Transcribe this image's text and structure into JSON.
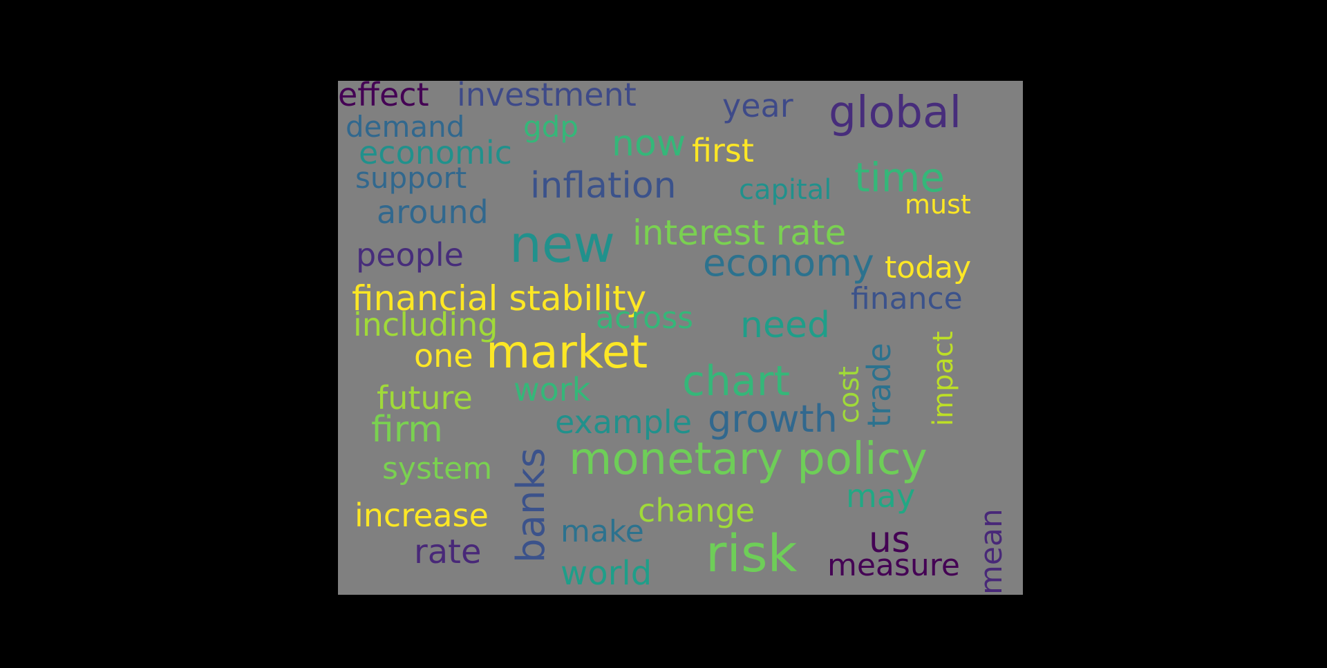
{
  "words": [
    {
      "text": "effect",
      "color": "#440154"
    },
    {
      "text": "investment",
      "color": "#3e4a89"
    },
    {
      "text": "year",
      "color": "#3e4a89"
    },
    {
      "text": "global",
      "color": "#472d7b"
    },
    {
      "text": "system",
      "color": "#fde725"
    },
    {
      "text": "demand",
      "color": "#31688e"
    },
    {
      "text": "gdp",
      "color": "#35b779"
    },
    {
      "text": "economic",
      "color": "#21918c"
    },
    {
      "text": "now",
      "color": "#35b779"
    },
    {
      "text": "first",
      "color": "#fde725"
    },
    {
      "text": "support",
      "color": "#31688e"
    },
    {
      "text": "inflation",
      "color": "#3b528b"
    },
    {
      "text": "capital",
      "color": "#21918c"
    },
    {
      "text": "time",
      "color": "#35b779"
    },
    {
      "text": "must",
      "color": "#fde725"
    },
    {
      "text": "around",
      "color": "#31688e"
    },
    {
      "text": "new",
      "color": "#21918c"
    },
    {
      "text": "interest rate",
      "color": "#7ad151"
    },
    {
      "text": "people",
      "color": "#472d7b"
    },
    {
      "text": "economy",
      "color": "#2c728e"
    },
    {
      "text": "today",
      "color": "#fde725"
    },
    {
      "text": "financial",
      "color": "#fde725"
    },
    {
      "text": "financial stability",
      "color": "#fde725"
    },
    {
      "text": "finance",
      "color": "#3b528b"
    },
    {
      "text": "including",
      "color": "#a0da39"
    },
    {
      "text": "across",
      "color": "#35b779"
    },
    {
      "text": "need",
      "color": "#1f9e89"
    },
    {
      "text": "impact",
      "color": "#bddf26"
    },
    {
      "text": "trade",
      "color": "#2c728e"
    },
    {
      "text": "cost",
      "color": "#a0da39"
    },
    {
      "text": "one",
      "color": "#fde725"
    },
    {
      "text": "market",
      "color": "#fde725"
    },
    {
      "text": "chart",
      "color": "#35b779"
    },
    {
      "text": "future",
      "color": "#a0da39"
    },
    {
      "text": "work",
      "color": "#35b779"
    },
    {
      "text": "example",
      "color": "#21918c"
    },
    {
      "text": "growth",
      "color": "#31688e"
    },
    {
      "text": "firm",
      "color": "#7ad151"
    },
    {
      "text": "banks",
      "color": "#3b528b"
    },
    {
      "text": "system",
      "color": "#7ad151"
    },
    {
      "text": "monetary policy",
      "color": "#6ece58"
    },
    {
      "text": "may",
      "color": "#22a884"
    },
    {
      "text": "increase",
      "color": "#fde725"
    },
    {
      "text": "change",
      "color": "#a0da39"
    },
    {
      "text": "make",
      "color": "#2c728e"
    },
    {
      "text": "us",
      "color": "#440154"
    },
    {
      "text": "mean",
      "color": "#482878"
    },
    {
      "text": "rate",
      "color": "#482878"
    },
    {
      "text": "risk",
      "color": "#6ece58"
    },
    {
      "text": "world",
      "color": "#1f9e89"
    },
    {
      "text": "measure",
      "color": "#440154"
    }
  ]
}
